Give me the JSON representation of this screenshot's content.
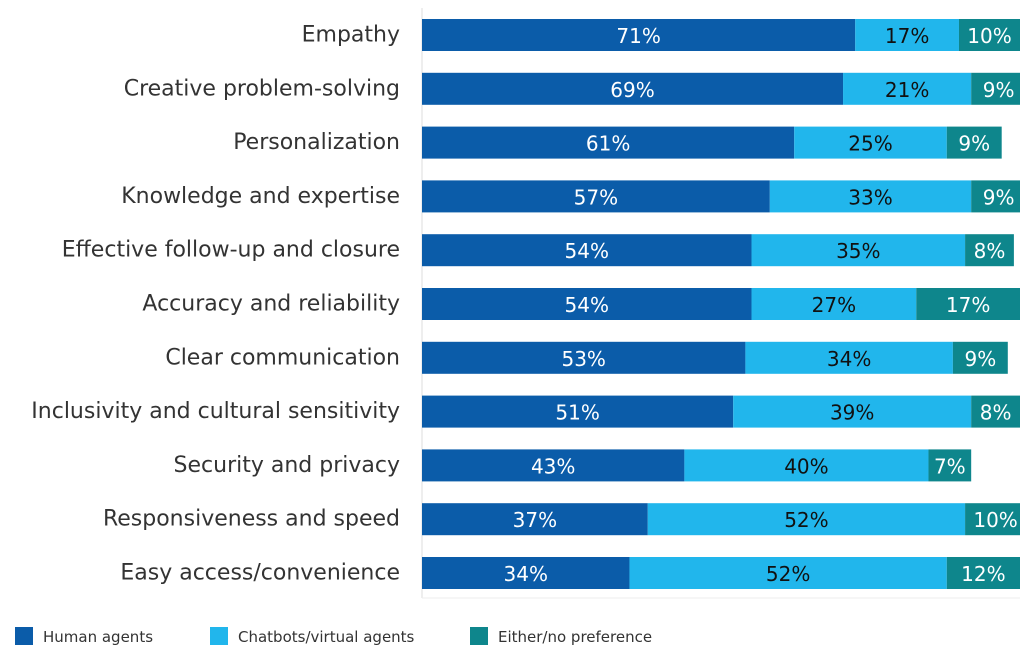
{
  "chart_data": {
    "type": "bar",
    "orientation": "horizontal",
    "stacked": true,
    "categories": [
      "Empathy",
      "Creative problem-solving",
      "Personalization",
      "Knowledge and expertise",
      "Effective follow-up and closure",
      "Accuracy and reliability",
      "Clear communication",
      "Inclusivity and cultural sensitivity",
      "Security and privacy",
      "Responsiveness and speed",
      "Easy access/convenience"
    ],
    "series": [
      {
        "name": "Human agents",
        "color": "#0b5ca9",
        "label_color": "#ffffff",
        "values": [
          71,
          69,
          61,
          57,
          54,
          54,
          53,
          51,
          43,
          37,
          34
        ],
        "value_labels": [
          "71%",
          "69%",
          "61%",
          "57%",
          "54%",
          "54%",
          "53%",
          "51%",
          "43%",
          "37%",
          "34%"
        ]
      },
      {
        "name": "Chatbots/virtual agents",
        "color": "#21b6ec",
        "label_color": "#111111",
        "values": [
          17,
          21,
          25,
          33,
          35,
          27,
          34,
          39,
          40,
          52,
          52
        ],
        "value_labels": [
          "17%",
          "21%",
          "25%",
          "33%",
          "35%",
          "27%",
          "34%",
          "39%",
          "40%",
          "52%",
          "52%"
        ]
      },
      {
        "name": "Either/no preference",
        "color": "#0e868c",
        "label_color": "#ffffff",
        "values": [
          10,
          9,
          9,
          9,
          8,
          17,
          9,
          8,
          7,
          10,
          12
        ],
        "value_labels": [
          "10%",
          "9%",
          "9%",
          "9%",
          "8%",
          "17%",
          "9%",
          "8%",
          "7%",
          "10%",
          "12%"
        ]
      }
    ],
    "xlim": [
      0,
      98
    ],
    "legend": "bottom-left"
  }
}
